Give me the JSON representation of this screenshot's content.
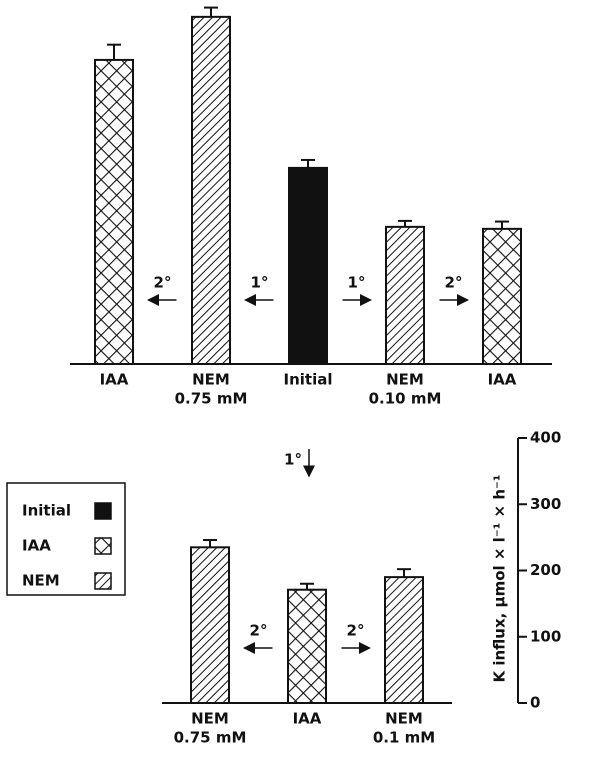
{
  "chart_data": [
    {
      "type": "bar",
      "categories": [
        [
          "IAA"
        ],
        [
          "NEM",
          "0.75 mM"
        ],
        [
          "Initial"
        ],
        [
          "NEM",
          "0.10 mM"
        ],
        [
          "IAA"
        ]
      ],
      "values": [
        459,
        524,
        296,
        207,
        204
      ],
      "errors": [
        23,
        14,
        12,
        9,
        11
      ],
      "patterns": [
        "crosshatch",
        "hatch",
        "solid",
        "hatch",
        "crosshatch"
      ],
      "arrows": [
        {
          "label": "2°",
          "direction": "left"
        },
        {
          "label": "1°",
          "direction": "left"
        },
        {
          "label": "1°",
          "direction": "right"
        },
        {
          "label": "2°",
          "direction": "right"
        }
      ]
    },
    {
      "type": "bar",
      "categories": [
        [
          "NEM",
          "0.75 mM"
        ],
        [
          "IAA"
        ],
        [
          "NEM",
          "0.1 mM"
        ]
      ],
      "values": [
        235,
        171,
        190
      ],
      "errors": [
        11,
        9,
        12
      ],
      "patterns": [
        "hatch",
        "crosshatch",
        "hatch"
      ],
      "arrows": [
        {
          "label": "2°",
          "direction": "left"
        },
        {
          "label": "2°",
          "direction": "right"
        }
      ],
      "ylabel": "K influx, μmol × l⁻¹ × h⁻¹",
      "ylim": [
        0,
        400
      ],
      "yticks": [
        0,
        100,
        200,
        300,
        400
      ]
    }
  ],
  "link": {
    "label": "1°",
    "direction": "down"
  },
  "legend": [
    {
      "name": "Initial",
      "pattern": "solid"
    },
    {
      "name": "IAA",
      "pattern": "crosshatch"
    },
    {
      "name": "NEM",
      "pattern": "hatch"
    }
  ]
}
